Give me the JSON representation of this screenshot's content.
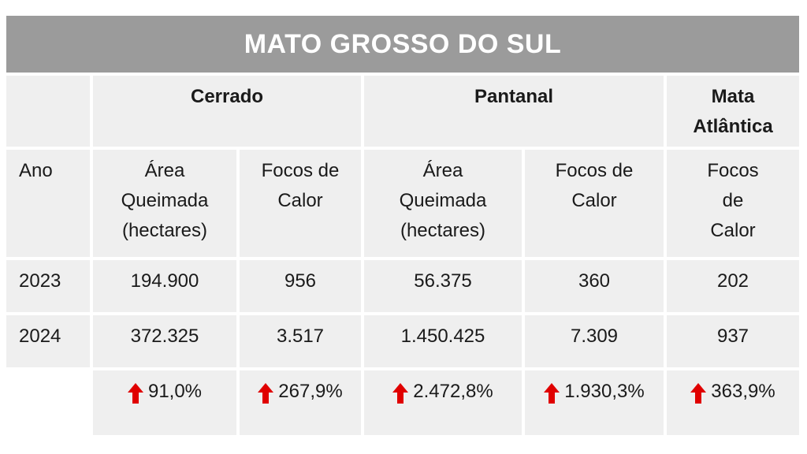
{
  "title": "MATO GROSSO DO SUL",
  "biomes": {
    "cerrado": "Cerrado",
    "pantanal": "Pantanal",
    "mata_atlantica": [
      "Mata",
      "Atlântica"
    ]
  },
  "subheaders": {
    "ano": "Ano",
    "area_queimada": [
      "Área",
      "Queimada",
      "(hectares)"
    ],
    "focos_de_calor": [
      "Focos de",
      "Calor"
    ],
    "focos_de_calor_ma": [
      "Focos",
      "de",
      "Calor"
    ]
  },
  "rows": [
    {
      "year": "2023",
      "cerrado_area": "194.900",
      "cerrado_focos": "956",
      "pantanal_area": "56.375",
      "pantanal_focos": "360",
      "ma_focos": "202"
    },
    {
      "year": "2024",
      "cerrado_area": "372.325",
      "cerrado_focos": "3.517",
      "pantanal_area": "1.450.425",
      "pantanal_focos": "7.309",
      "ma_focos": "937"
    }
  ],
  "changes": {
    "cerrado_area": "91,0%",
    "cerrado_focos": "267,9%",
    "pantanal_area": "2.472,8%",
    "pantanal_focos": "1.930,3%",
    "ma_focos": "363,9%"
  },
  "colors": {
    "banner_bg": "#9b9b9b",
    "cell_bg": "#efefef",
    "arrow_up": "#e00000"
  },
  "icons": {
    "increase": "arrow-up-icon"
  }
}
